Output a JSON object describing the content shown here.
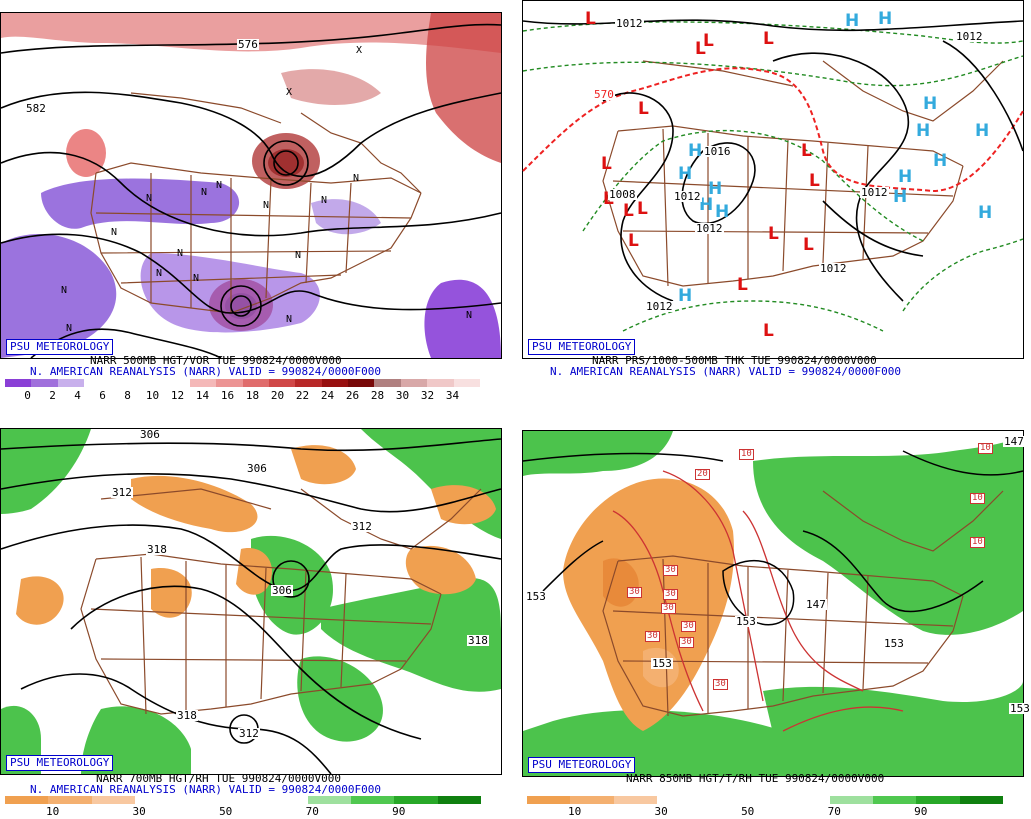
{
  "panels": [
    {
      "badge": "PSU METEOROLOGY",
      "line1": "NARR 500MB HGT/VOR TUE 990824/0000V000",
      "line2": "N. AMERICAN REANALYSIS (NARR) VALID = 990824/0000F000",
      "scale_colors": [
        "#8a3fd6",
        "#a070dc",
        "#c8b0ec",
        "#ffffff",
        "#ffffff",
        "#ffffff",
        "#ffffff",
        "#f4b8b8",
        "#ec9494",
        "#e06c6c",
        "#d04848",
        "#b82828",
        "#981010",
        "#780808",
        "#b08080",
        "#d8a8a8",
        "#f0c8c8",
        "#f8e0e0"
      ],
      "scale_ticks": [
        "0",
        "2",
        "4",
        "6",
        "8",
        "10",
        "12",
        "14",
        "16",
        "18",
        "20",
        "22",
        "24",
        "26",
        "28",
        "30",
        "32",
        "34"
      ],
      "labels": [
        "582",
        "576"
      ]
    },
    {
      "badge": "PSU METEOROLOGY",
      "line1": "NARR PRS/1000-500MB THK TUE 990824/0000V000",
      "line2": "N. AMERICAN REANALYSIS (NARR) VALID = 990824/0000F000",
      "labels": [
        "1012",
        "1012",
        "570",
        "1016",
        "1008",
        "1012",
        "1012",
        "1012",
        "1012",
        "1012"
      ]
    },
    {
      "badge": "PSU METEOROLOGY",
      "line1": "NARR 700MB HGT/RH TUE 990824/0000V000",
      "line2": "N. AMERICAN REANALYSIS (NARR) VALID = 990824/0000F000",
      "scale_colors": [
        "#f0a050",
        "#f4b070",
        "#f8c8a0",
        "#ffffff",
        "#ffffff",
        "#ffffff",
        "#ffffff",
        "#9ee09e",
        "#50c850",
        "#28a828",
        "#108010"
      ],
      "scale_ticks": [
        "10",
        "30",
        "50",
        "70",
        "90"
      ],
      "labels": [
        "306",
        "312",
        "306",
        "312",
        "318",
        "306",
        "318",
        "318",
        "312"
      ]
    },
    {
      "badge": "PSU METEOROLOGY",
      "line1": "NARR 850MB HGT/T/RH TUE 990824/0000V000",
      "line2": "",
      "scale_colors": [
        "#f0a050",
        "#f4b070",
        "#f8c8a0",
        "#ffffff",
        "#ffffff",
        "#ffffff",
        "#ffffff",
        "#9ee09e",
        "#50c850",
        "#28a828",
        "#108010"
      ],
      "scale_ticks": [
        "10",
        "30",
        "50",
        "70",
        "90"
      ],
      "labels": [
        "153",
        "153",
        "147",
        "153",
        "153",
        "147",
        "153"
      ],
      "boxed": [
        "20",
        "10",
        "10",
        "10",
        "10",
        "30",
        "30",
        "30",
        "30",
        "30",
        "30",
        "30",
        "30"
      ]
    }
  ],
  "pressure_systems": {
    "lows": [
      "L",
      "L",
      "L",
      "L",
      "L",
      "L",
      "L",
      "L",
      "L",
      "L",
      "L",
      "L",
      "L",
      "L",
      "L",
      "L"
    ],
    "highs": [
      "H",
      "H",
      "H",
      "H",
      "H",
      "H",
      "H",
      "H",
      "H",
      "H",
      "H",
      "H",
      "H",
      "H",
      "H"
    ]
  },
  "vorticity_marks": [
    "N",
    "N",
    "N",
    "N",
    "N",
    "N",
    "N",
    "N",
    "N",
    "N",
    "N",
    "N",
    "X",
    "X",
    "N",
    "N",
    "N"
  ],
  "colors": {
    "state_lines": "#8b4a2b",
    "contours": "#000000",
    "low_marker": "#dd1111",
    "high_marker": "#33aadd",
    "thickness_570": "#ee2222",
    "thickness_dash": "#228b22"
  }
}
